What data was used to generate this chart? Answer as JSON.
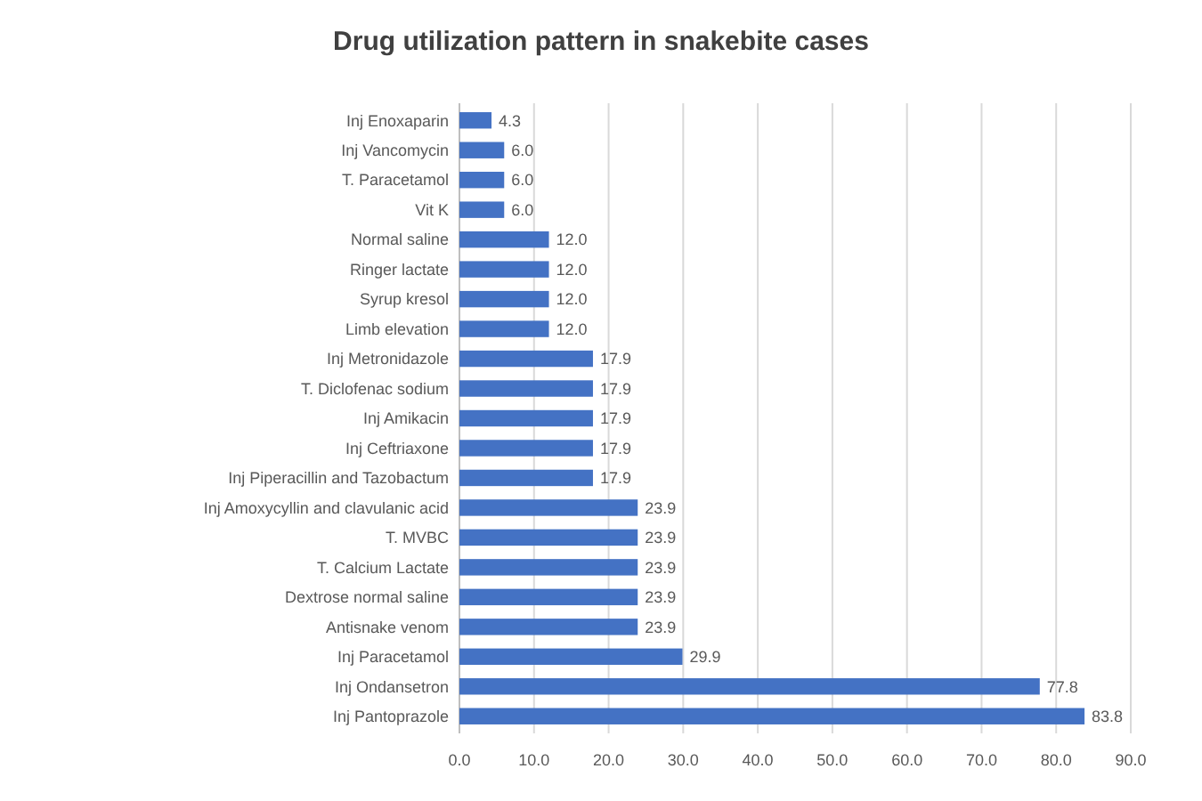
{
  "chart_data": {
    "type": "bar",
    "orientation": "horizontal",
    "title": "Drug utilization pattern in snakebite cases",
    "categories": [
      "Inj Enoxaparin",
      "Inj Vancomycin",
      "T. Paracetamol",
      "Vit K",
      "Normal saline",
      "Ringer lactate",
      "Syrup kresol",
      "Limb elevation",
      "Inj Metronidazole",
      "T. Diclofenac sodium",
      "Inj Amikacin",
      "Inj Ceftriaxone",
      "Inj Piperacillin and Tazobactum",
      "Inj Amoxycyllin and clavulanic acid",
      "T. MVBC",
      "T. Calcium Lactate",
      "Dextrose normal saline",
      "Antisnake venom",
      "Inj Paracetamol",
      "Inj Ondansetron",
      "Inj Pantoprazole"
    ],
    "values": [
      4.3,
      6.0,
      6.0,
      6.0,
      12.0,
      12.0,
      12.0,
      12.0,
      17.9,
      17.9,
      17.9,
      17.9,
      17.9,
      23.9,
      23.9,
      23.9,
      23.9,
      23.9,
      29.9,
      77.8,
      83.8
    ],
    "value_labels": [
      "4.3",
      "6.0",
      "6.0",
      "6.0",
      "12.0",
      "12.0",
      "12.0",
      "12.0",
      "17.9",
      "17.9",
      "17.9",
      "17.9",
      "17.9",
      "23.9",
      "23.9",
      "23.9",
      "23.9",
      "23.9",
      "29.9",
      "77.8",
      "83.8"
    ],
    "color": "#4472c4",
    "xlim": [
      0,
      90
    ],
    "xticks": [
      {
        "value": 0,
        "label": "0.0"
      },
      {
        "value": 10,
        "label": "10.0"
      },
      {
        "value": 20,
        "label": "20.0"
      },
      {
        "value": 30,
        "label": "30.0"
      },
      {
        "value": 40,
        "label": "40.0"
      },
      {
        "value": 50,
        "label": "50.0"
      },
      {
        "value": 60,
        "label": "60.0"
      },
      {
        "value": 70,
        "label": "70.0"
      },
      {
        "value": 80,
        "label": "80.0"
      },
      {
        "value": 90,
        "label": "90.0"
      }
    ],
    "grid": "x"
  }
}
